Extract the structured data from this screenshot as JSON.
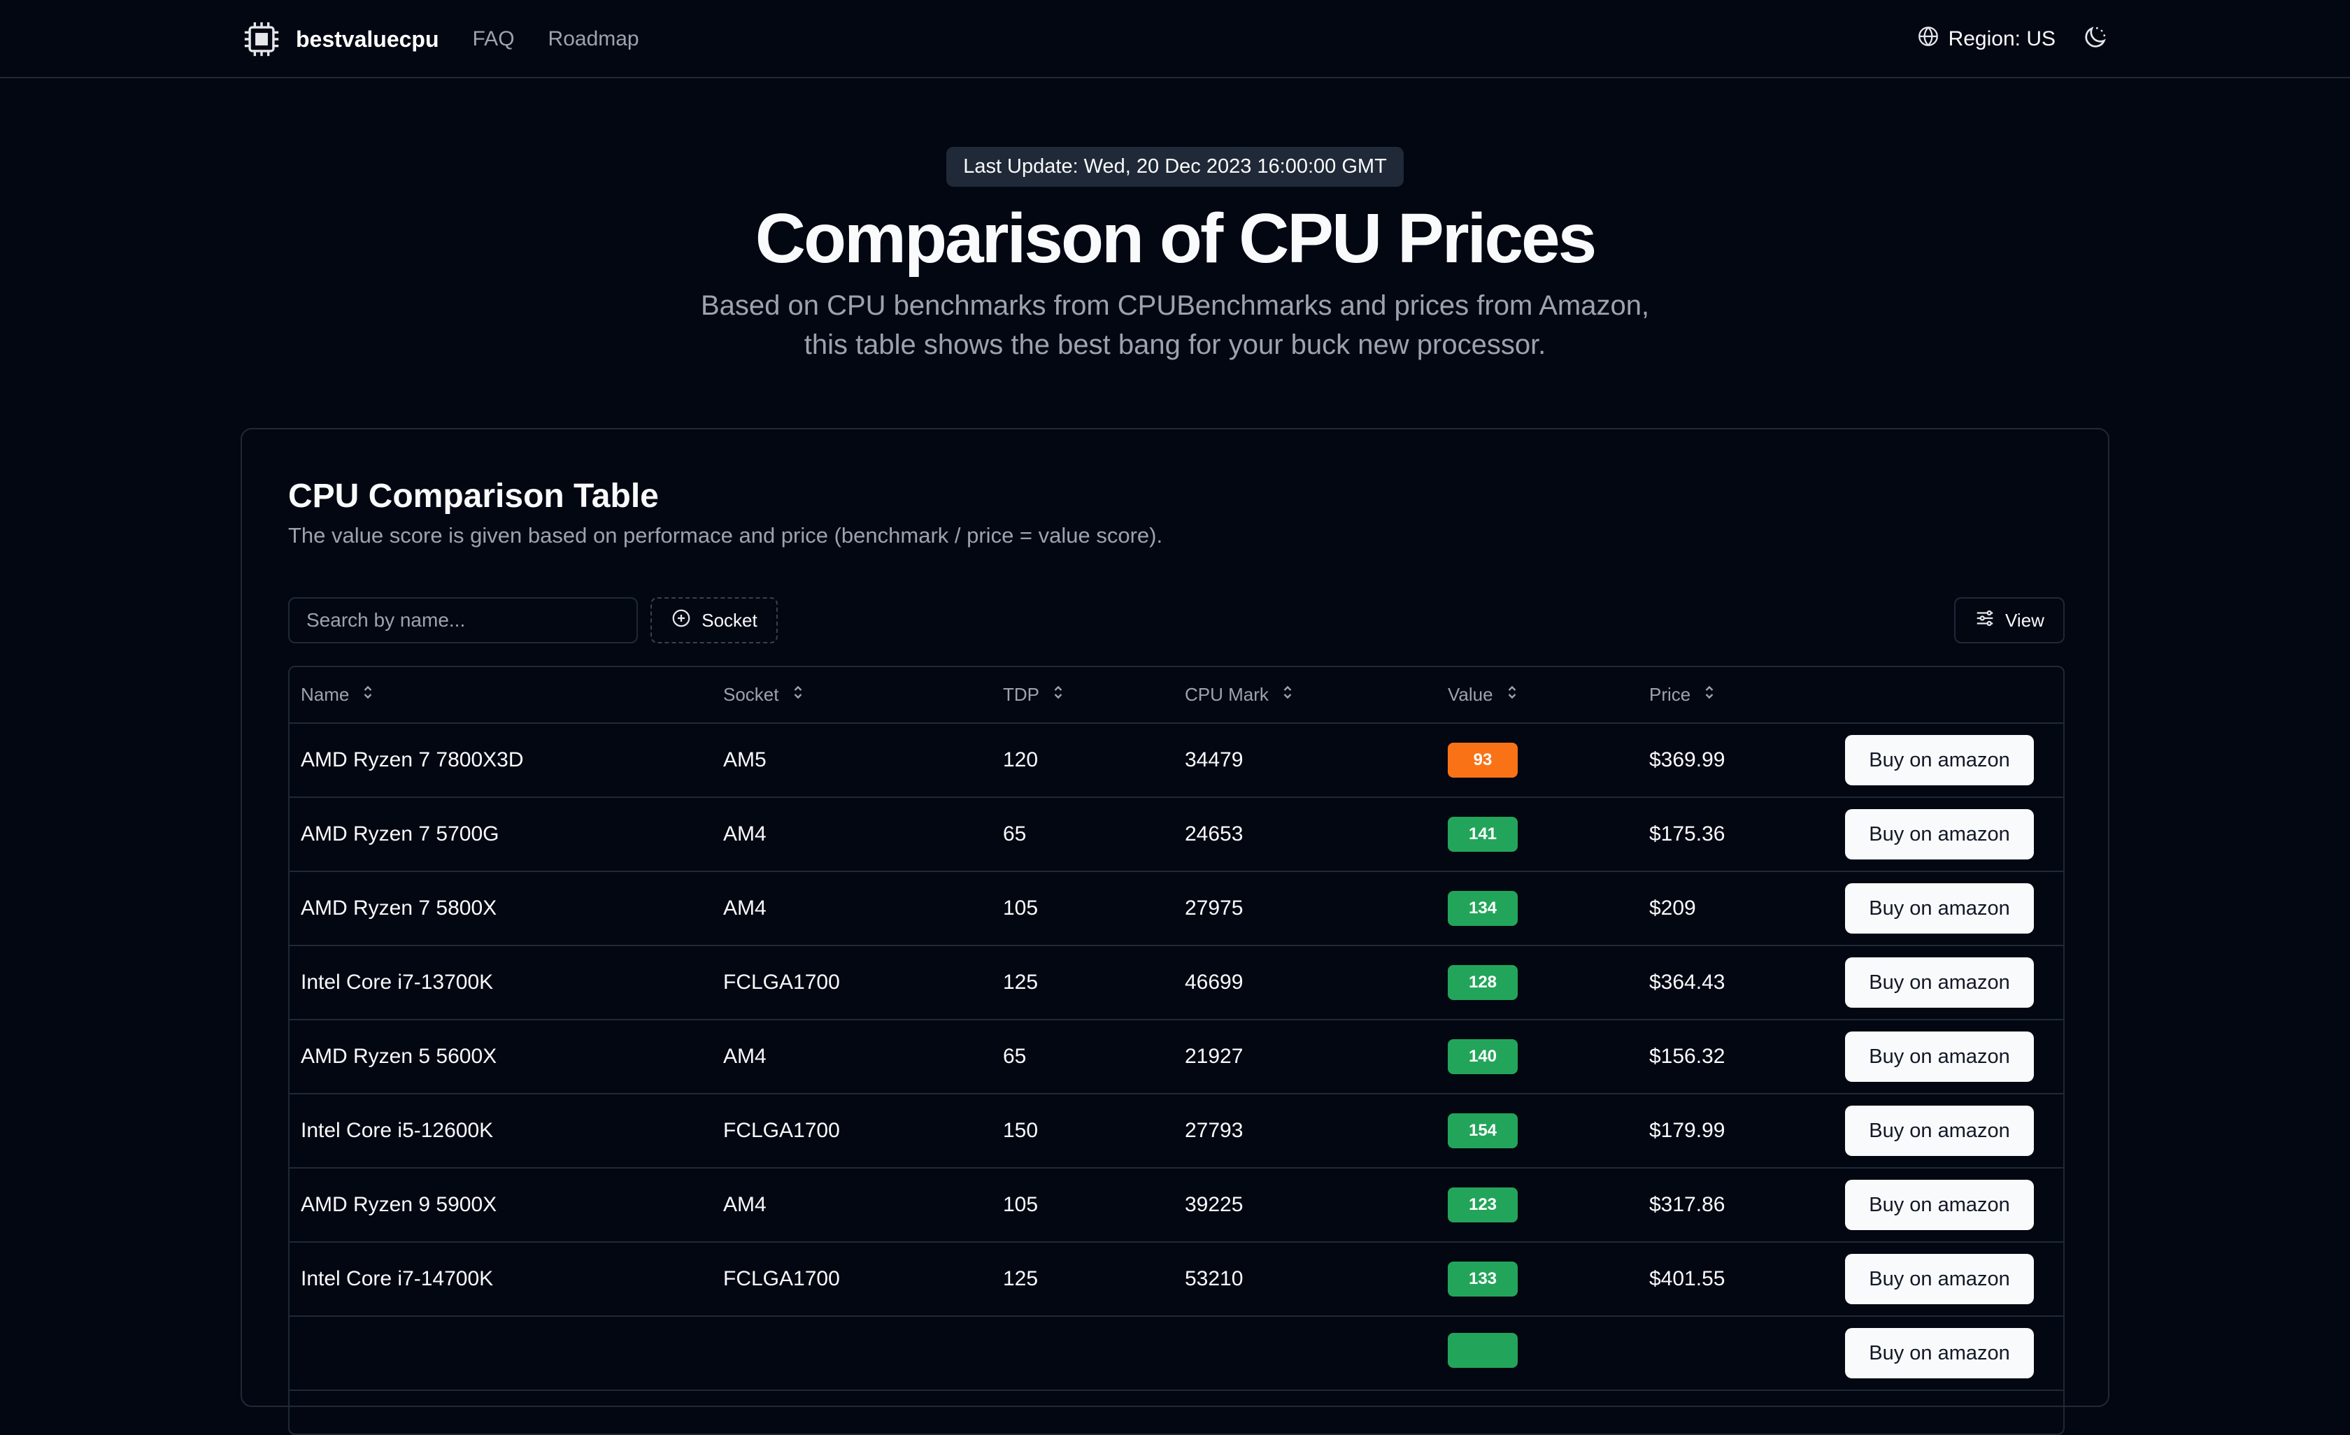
{
  "header": {
    "brand": "bestvaluecpu",
    "nav": [
      "FAQ",
      "Roadmap"
    ],
    "region_label": "Region: US",
    "icons": [
      "cpu-chip-icon",
      "globe-icon",
      "moon-sun-icon"
    ]
  },
  "hero": {
    "update_pill": "Last Update: Wed, 20 Dec 2023 16:00:00 GMT",
    "title": "Comparison of CPU Prices",
    "subtitle": "Based on CPU benchmarks from CPUBenchmarks and prices from Amazon, this table shows the best bang for your buck new processor."
  },
  "card": {
    "title": "CPU Comparison Table",
    "description": "The value score is given based on performace and price (benchmark / price = value score)."
  },
  "toolbar": {
    "search_placeholder": "Search by name...",
    "socket_label": "Socket",
    "view_label": "View"
  },
  "table": {
    "columns": [
      "Name",
      "Socket",
      "TDP",
      "CPU Mark",
      "Value",
      "Price"
    ],
    "buy_label": "Buy on amazon",
    "rows": [
      {
        "name": "AMD Ryzen 7 7800X3D",
        "socket": "AM5",
        "tdp": "120",
        "mark": "34479",
        "value": "93",
        "price": "$369.99"
      },
      {
        "name": "AMD Ryzen 7 5700G",
        "socket": "AM4",
        "tdp": "65",
        "mark": "24653",
        "value": "141",
        "price": "$175.36"
      },
      {
        "name": "AMD Ryzen 7 5800X",
        "socket": "AM4",
        "tdp": "105",
        "mark": "27975",
        "value": "134",
        "price": "$209"
      },
      {
        "name": "Intel Core i7-13700K",
        "socket": "FCLGA1700",
        "tdp": "125",
        "mark": "46699",
        "value": "128",
        "price": "$364.43"
      },
      {
        "name": "AMD Ryzen 5 5600X",
        "socket": "AM4",
        "tdp": "65",
        "mark": "21927",
        "value": "140",
        "price": "$156.32"
      },
      {
        "name": "Intel Core i5-12600K",
        "socket": "FCLGA1700",
        "tdp": "150",
        "mark": "27793",
        "value": "154",
        "price": "$179.99"
      },
      {
        "name": "AMD Ryzen 9 5900X",
        "socket": "AM4",
        "tdp": "105",
        "mark": "39225",
        "value": "123",
        "price": "$317.86"
      },
      {
        "name": "Intel Core i7-14700K",
        "socket": "FCLGA1700",
        "tdp": "125",
        "mark": "53210",
        "value": "133",
        "price": "$401.55"
      },
      {
        "name": "",
        "socket": "",
        "tdp": "",
        "mark": "",
        "value": "",
        "price": ""
      }
    ]
  },
  "colors": {
    "background": "#030712",
    "border": "#1f2937",
    "badge_orange": "#f97316",
    "badge_green": "#22a55a"
  }
}
